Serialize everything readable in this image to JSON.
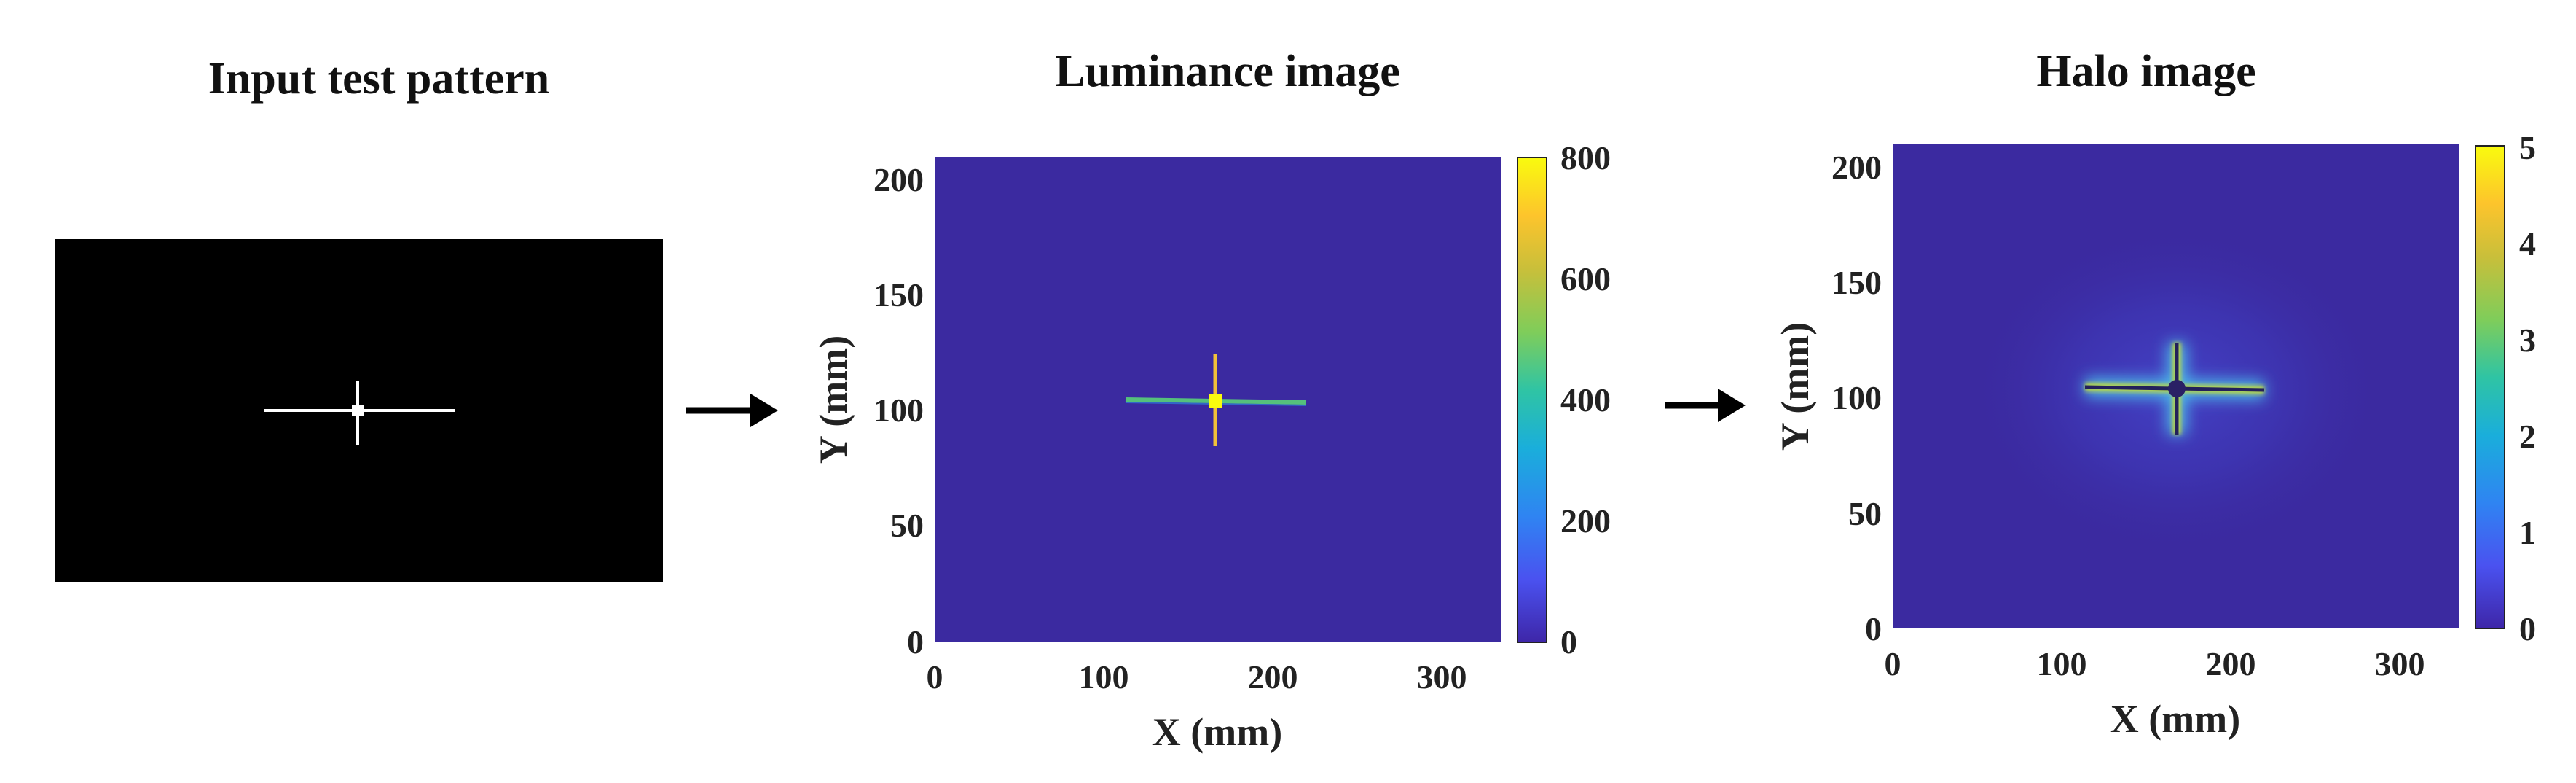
{
  "panels": [
    {
      "title": "Input test pattern"
    },
    {
      "title": "Luminance image",
      "x_label": "X (mm)",
      "y_label": "Y (mm)",
      "x_ticks": [
        "0",
        "100",
        "200",
        "300"
      ],
      "y_ticks": [
        "0",
        "50",
        "100",
        "150",
        "200"
      ],
      "colorbar_ticks": [
        "0",
        "200",
        "400",
        "600",
        "800"
      ]
    },
    {
      "title": "Halo image",
      "x_label": "X (mm)",
      "y_label": "Y (mm)",
      "x_ticks": [
        "0",
        "100",
        "200",
        "300"
      ],
      "y_ticks": [
        "0",
        "50",
        "100",
        "150",
        "200"
      ],
      "colorbar_ticks": [
        "0",
        "1",
        "2",
        "3",
        "4",
        "5"
      ]
    }
  ],
  "colors": {
    "background_field": "#3b2aa0",
    "pattern_black": "#000000",
    "pattern_white": "#ffffff",
    "colormap": [
      "#3e26a8",
      "#4a52f0",
      "#2f84f2",
      "#1aaedb",
      "#2fc4a4",
      "#7fcd5a",
      "#c9bf3a",
      "#fdc42c",
      "#f9fb0e"
    ]
  }
}
